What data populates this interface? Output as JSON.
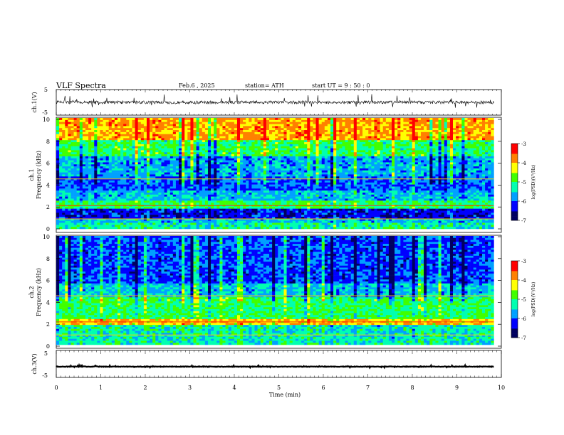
{
  "header": {
    "title": "VLF  Spectra",
    "date": "Feb.6  , 2025",
    "station": "station= ATH",
    "start": "start  UT  =   9  : 50 : 0"
  },
  "chart_data": [
    {
      "type": "line",
      "panel": "ch1-waveform",
      "ylabel": "ch.1(V)",
      "ylim": [
        -5,
        5
      ],
      "yticks": [
        "5",
        "-5"
      ],
      "xlim": [
        0,
        10
      ],
      "description_values": {
        "baseline_v": 0.0,
        "noise_amplitude_v": 1.2
      },
      "color": "#000000"
    },
    {
      "type": "heatmap",
      "panel": "ch1-spectrogram",
      "ylabel_top": "ch.1",
      "ylabel": "Frequency  (kHz)",
      "ylim": [
        0,
        10
      ],
      "yticks": [
        "0",
        "2",
        "4",
        "6",
        "8",
        "10"
      ],
      "xlim": [
        0,
        9.83
      ],
      "colorbar": {
        "label": "log(PSD)(V²/Hz)",
        "range": [
          -7,
          -3
        ],
        "ticks": [
          "-3",
          "-4",
          "-5",
          "-6",
          "-7"
        ],
        "colors": [
          "#000060",
          "#0000ff",
          "#00a0ff",
          "#00ffb0",
          "#40ff00",
          "#ffff00",
          "#ff8000",
          "#ff0000",
          "#ffffff"
        ]
      },
      "bands": [
        {
          "f": [
            0.0,
            0.6
          ],
          "logpsd": -5.2
        },
        {
          "f": [
            0.6,
            1.0
          ],
          "logpsd": -5.6
        },
        {
          "f": [
            1.0,
            1.8
          ],
          "logpsd": -6.3
        },
        {
          "f": [
            1.8,
            2.6
          ],
          "logpsd": -5.0
        },
        {
          "f": [
            2.6,
            3.4
          ],
          "logpsd": -5.6
        },
        {
          "f": [
            3.4,
            4.8
          ],
          "logpsd": -6.0
        },
        {
          "f": [
            4.8,
            6.6
          ],
          "logpsd": -5.7
        },
        {
          "f": [
            6.6,
            8.0
          ],
          "logpsd": -5.0
        },
        {
          "f": [
            8.0,
            10.0
          ],
          "logpsd": -3.9
        }
      ]
    },
    {
      "type": "heatmap",
      "panel": "ch2-spectrogram",
      "ylabel_top": "ch.2",
      "ylabel": "Frequency  (kHz)",
      "ylim": [
        0,
        10
      ],
      "yticks": [
        "0",
        "2",
        "4",
        "6",
        "8",
        "10"
      ],
      "xlim": [
        0,
        9.83
      ],
      "colorbar": {
        "label": "log(PSD)(V²/Hz)",
        "range": [
          -7,
          -3
        ],
        "ticks": [
          "-3",
          "-4",
          "-5",
          "-6",
          "-7"
        ],
        "colors": [
          "#000060",
          "#0000ff",
          "#00a0ff",
          "#00ffb0",
          "#40ff00",
          "#ffff00",
          "#ff8000",
          "#ff0000",
          "#ffffff"
        ]
      },
      "bands": [
        {
          "f": [
            0.0,
            1.8
          ],
          "logpsd": -5.3
        },
        {
          "f": [
            1.8,
            2.3
          ],
          "logpsd": -4.1
        },
        {
          "f": [
            2.3,
            4.4
          ],
          "logpsd": -5.0
        },
        {
          "f": [
            4.4,
            5.6
          ],
          "logpsd": -5.6
        },
        {
          "f": [
            5.6,
            10.0
          ],
          "logpsd": -6.1
        }
      ]
    },
    {
      "type": "line",
      "panel": "ch3-waveform",
      "ylabel": "ch.3(V)",
      "ylim": [
        -5,
        5
      ],
      "yticks": [
        "5",
        "-5"
      ],
      "xlim": [
        0,
        10
      ],
      "description_values": {
        "baseline_v": -1.0,
        "noise_amplitude_v": 0.2
      },
      "xlabel": "Time  (min)",
      "xticks": [
        "0",
        "1",
        "2",
        "3",
        "4",
        "5",
        "6",
        "7",
        "8",
        "9",
        "10"
      ],
      "color": "#000000"
    }
  ]
}
